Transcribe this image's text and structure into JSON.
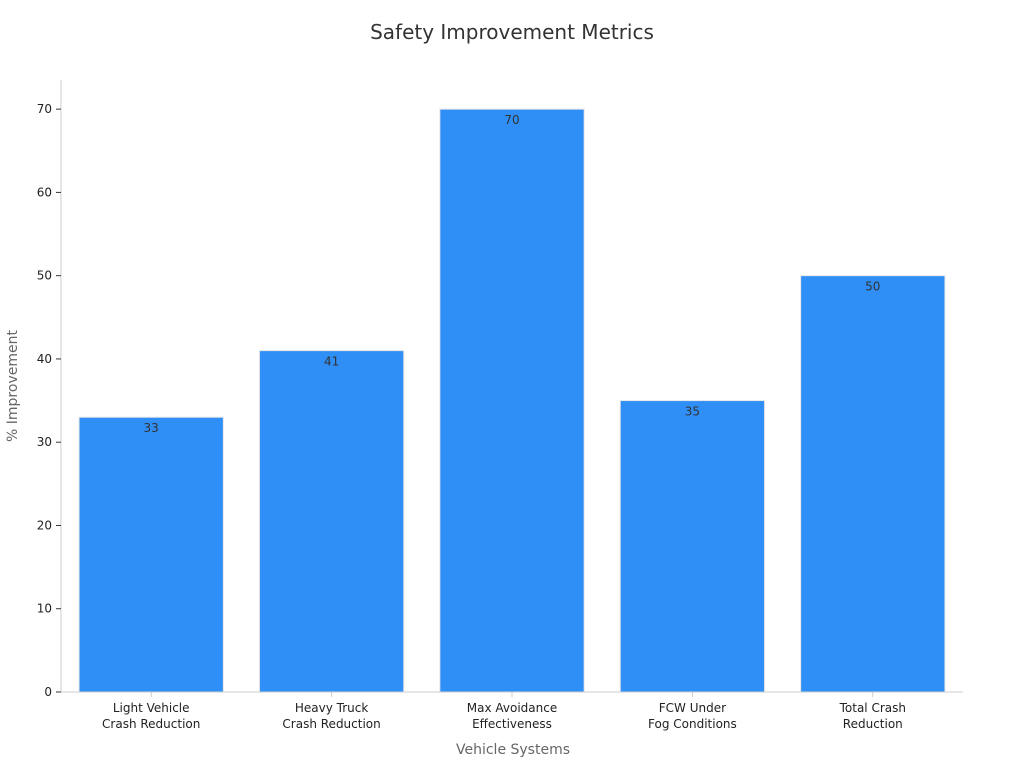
{
  "chart_data": {
    "type": "bar",
    "title": "Safety Improvement Metrics",
    "xlabel": "Vehicle Systems",
    "ylabel": "% Improvement",
    "categories": [
      [
        "Light Vehicle",
        "Crash Reduction"
      ],
      [
        "Heavy Truck",
        "Crash Reduction"
      ],
      [
        "Max Avoidance",
        "Effectiveness"
      ],
      [
        "FCW Under",
        "Fog Conditions"
      ],
      [
        "Total Crash",
        "Reduction"
      ]
    ],
    "values": [
      33,
      41,
      70,
      35,
      50
    ],
    "data_labels": [
      "33",
      "41",
      "70",
      "35",
      "50"
    ],
    "y_ticks": [
      0,
      10,
      20,
      30,
      40,
      50,
      60,
      70
    ],
    "ylim": [
      0,
      73.5
    ],
    "grid": false,
    "bar_color": "#2f8ff7",
    "label_color": "#333333"
  }
}
